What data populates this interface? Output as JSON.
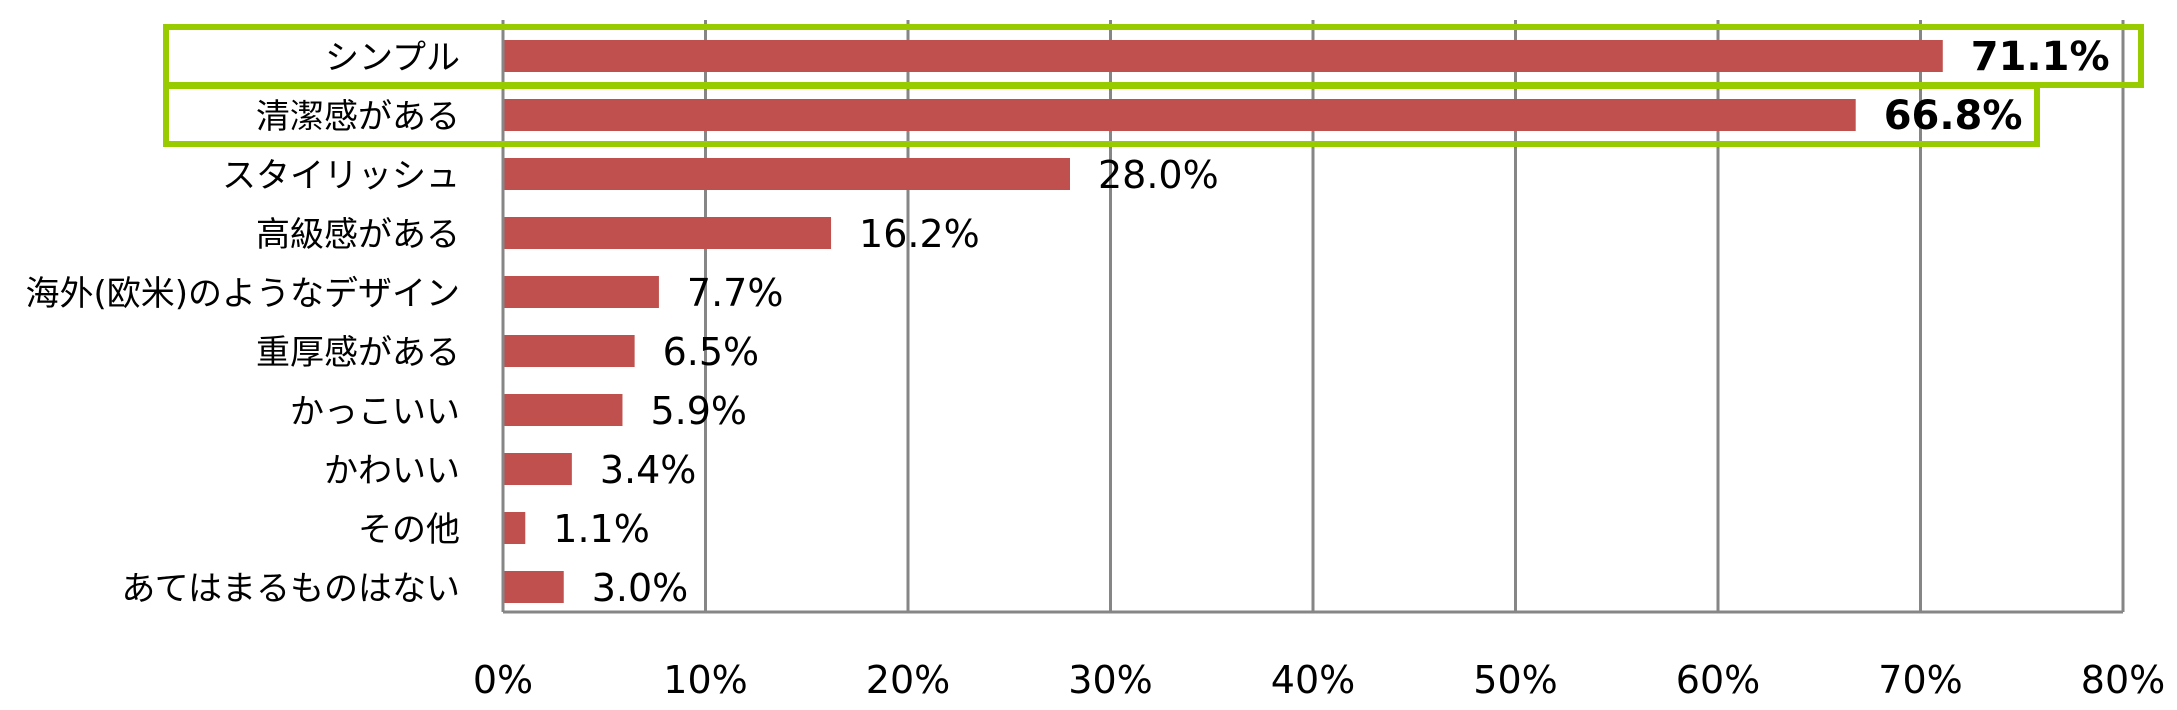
{
  "chart_data": {
    "type": "bar",
    "orientation": "horizontal",
    "title": "",
    "xlabel": "",
    "ylabel": "",
    "xlim": [
      0,
      80
    ],
    "x_ticks": [
      0,
      10,
      20,
      30,
      40,
      50,
      60,
      70,
      80
    ],
    "x_tick_labels": [
      "0%",
      "10%",
      "20%",
      "30%",
      "40%",
      "50%",
      "60%",
      "70%",
      "80%"
    ],
    "grid": "vertical",
    "legend": "none",
    "categories": [
      "シンプル",
      "清潔感がある",
      "スタイリッシュ",
      "高級感がある",
      "海外(欧米)のようなデザイン",
      "重厚感がある",
      "かっこいい",
      "かわいい",
      "その他",
      "あてはまるものはない"
    ],
    "values": [
      71.1,
      66.8,
      28.0,
      16.2,
      7.7,
      6.5,
      5.9,
      3.4,
      1.1,
      3.0
    ],
    "value_labels": [
      "71.1%",
      "66.8%",
      "28.0%",
      "16.2%",
      "7.7%",
      "6.5%",
      "5.9%",
      "3.4%",
      "1.1%",
      "3.0%"
    ],
    "highlighted": [
      0,
      1
    ],
    "colors": {
      "bar": "#C0504D",
      "grid": "#868686",
      "axis": "#868686",
      "highlight_border": "#99CC00",
      "text": "#000000"
    }
  }
}
